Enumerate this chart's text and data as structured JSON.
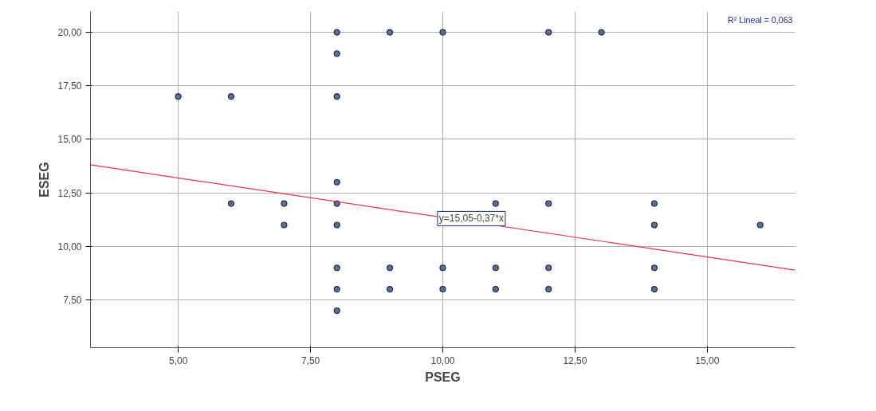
{
  "chart_data": {
    "type": "scatter",
    "xlabel": "PSEG",
    "ylabel": "ESEG",
    "xlim": [
      3.34,
      16.66
    ],
    "ylim": [
      5.27,
      20.97
    ],
    "xticks": [
      {
        "value": 5,
        "label": "5,00"
      },
      {
        "value": 7.5,
        "label": "7,50"
      },
      {
        "value": 10,
        "label": "10,00"
      },
      {
        "value": 12.5,
        "label": "12,50"
      },
      {
        "value": 15,
        "label": "15,00"
      }
    ],
    "yticks": [
      {
        "value": 7.5,
        "label": "7,50"
      },
      {
        "value": 10,
        "label": "10,00"
      },
      {
        "value": 12.5,
        "label": "12,50"
      },
      {
        "value": 15,
        "label": "15,00"
      },
      {
        "value": 17.5,
        "label": "17,50"
      },
      {
        "value": 20,
        "label": "20,00"
      }
    ],
    "grid": true,
    "series": [
      {
        "marker": "circle",
        "color": "#5f6f8c",
        "x": [
          5,
          6,
          8,
          8,
          9,
          10,
          12,
          13,
          8,
          8,
          6,
          7,
          8,
          11,
          12,
          14,
          7,
          8,
          14,
          16,
          8,
          9,
          10,
          11,
          12,
          14,
          8,
          9,
          10,
          11,
          12,
          14,
          8
        ],
        "values": [
          17,
          17,
          17,
          20,
          20,
          20,
          20,
          20,
          19,
          13,
          12,
          12,
          12,
          12,
          12,
          12,
          11,
          11,
          11,
          11,
          9,
          9,
          9,
          9,
          9,
          9,
          8,
          8,
          8,
          8,
          8,
          8,
          7
        ]
      },
      {
        "type": "line",
        "color": "#e8334f",
        "x": [
          3.34,
          16.66
        ],
        "values": [
          13.81,
          8.89
        ]
      }
    ],
    "annotations": [
      {
        "text": "y=15,05-0,37*x",
        "x": 9.9,
        "y": 11.3
      },
      "R² Lineal = 0,063"
    ]
  }
}
